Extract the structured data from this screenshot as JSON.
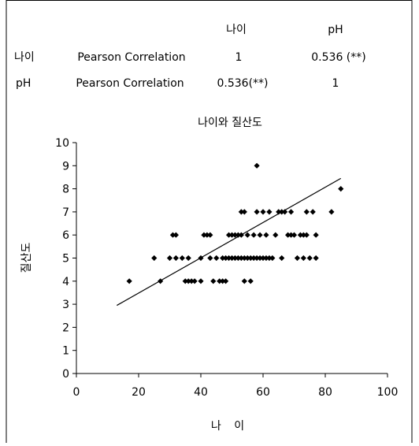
{
  "table": {
    "columns": [
      "",
      "",
      "나이",
      "pH"
    ],
    "rows": [
      {
        "variable": "나이",
        "statistic": "Pearson Correlation",
        "cells": [
          "1",
          "0.536 (**)"
        ]
      },
      {
        "variable": "pH",
        "statistic": "Pearson Correlation",
        "cells": [
          "0.536(**)",
          "1"
        ]
      }
    ]
  },
  "chart_data": {
    "type": "scatter",
    "title": "나이와 질산도",
    "xlabel": "나  이",
    "ylabel": "질산도",
    "xlim": [
      0,
      100
    ],
    "ylim": [
      0,
      10
    ],
    "x_ticks": [
      0,
      20,
      40,
      60,
      80,
      100
    ],
    "y_ticks": [
      0,
      1,
      2,
      3,
      4,
      5,
      6,
      7,
      8,
      9,
      10
    ],
    "grid": false,
    "legend": "none",
    "marker_color": "#000000",
    "trendline": {
      "x": [
        13,
        85
      ],
      "y": [
        2.95,
        8.45
      ],
      "color": "#000000"
    },
    "points": [
      [
        17,
        4
      ],
      [
        25,
        5
      ],
      [
        27,
        4
      ],
      [
        30,
        5
      ],
      [
        31,
        6
      ],
      [
        32,
        6
      ],
      [
        32,
        5
      ],
      [
        34,
        5
      ],
      [
        35,
        4
      ],
      [
        36,
        5
      ],
      [
        36,
        4
      ],
      [
        37,
        4
      ],
      [
        38,
        4
      ],
      [
        40,
        4
      ],
      [
        40,
        5
      ],
      [
        41,
        6
      ],
      [
        42,
        6
      ],
      [
        43,
        6
      ],
      [
        43,
        5
      ],
      [
        44,
        4
      ],
      [
        45,
        5
      ],
      [
        46,
        4
      ],
      [
        47,
        4
      ],
      [
        47,
        5
      ],
      [
        48,
        4
      ],
      [
        48,
        5
      ],
      [
        49,
        5
      ],
      [
        49,
        6
      ],
      [
        50,
        5
      ],
      [
        50,
        6
      ],
      [
        51,
        5
      ],
      [
        51,
        6
      ],
      [
        52,
        5
      ],
      [
        52,
        6
      ],
      [
        53,
        5
      ],
      [
        53,
        7
      ],
      [
        53,
        6
      ],
      [
        54,
        4
      ],
      [
        54,
        5
      ],
      [
        54,
        7
      ],
      [
        55,
        5
      ],
      [
        55,
        6
      ],
      [
        56,
        4
      ],
      [
        56,
        5
      ],
      [
        57,
        5
      ],
      [
        57,
        6
      ],
      [
        58,
        5
      ],
      [
        58,
        9
      ],
      [
        58,
        7
      ],
      [
        59,
        5
      ],
      [
        59,
        6
      ],
      [
        60,
        5
      ],
      [
        60,
        7
      ],
      [
        61,
        5
      ],
      [
        61,
        6
      ],
      [
        62,
        5
      ],
      [
        62,
        7
      ],
      [
        63,
        5
      ],
      [
        64,
        6
      ],
      [
        65,
        7
      ],
      [
        66,
        7
      ],
      [
        66,
        5
      ],
      [
        67,
        7
      ],
      [
        68,
        6
      ],
      [
        69,
        7
      ],
      [
        69,
        6
      ],
      [
        70,
        6
      ],
      [
        71,
        5
      ],
      [
        72,
        6
      ],
      [
        73,
        6
      ],
      [
        73,
        5
      ],
      [
        74,
        7
      ],
      [
        74,
        6
      ],
      [
        75,
        5
      ],
      [
        76,
        7
      ],
      [
        77,
        5
      ],
      [
        77,
        6
      ],
      [
        82,
        7
      ],
      [
        85,
        8
      ]
    ]
  }
}
